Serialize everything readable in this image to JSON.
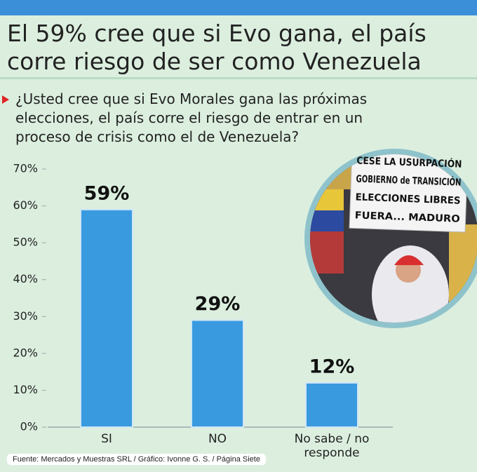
{
  "chart_data": {
    "type": "bar",
    "title": "El 59% cree que si Evo gana, el país corre riesgo de ser como Venezuela",
    "subtitle": "¿Usted cree que si Evo Morales gana las próximas elecciones, el país corre el riesgo de entrar en un proceso de crisis como el de Venezuela?",
    "categories": [
      "SI",
      "NO",
      "No sabe / no responde"
    ],
    "values": [
      59,
      29,
      12
    ],
    "value_labels": [
      "59%",
      "29%",
      "12%"
    ],
    "color": "#3a9ae0",
    "ylim": [
      0,
      70
    ],
    "yticks": [
      {
        "value": 0,
        "label": "0%"
      },
      {
        "value": 10,
        "label": "10%"
      },
      {
        "value": 20,
        "label": "20%"
      },
      {
        "value": 30,
        "label": "30%"
      },
      {
        "value": 40,
        "label": "40%"
      },
      {
        "value": 50,
        "label": "50%"
      },
      {
        "value": 60,
        "label": "60%"
      },
      {
        "value": 70,
        "label": "70%"
      }
    ],
    "grid": false,
    "photo_sign": [
      "CESE LA USURPACIÓN",
      "GOBIERNO de TRANSICIÓN",
      "ELECCIONES LIBRES",
      "FUERA... MADURO"
    ],
    "source": "Fuente: Mercados y Muestras SRL / Gráfico: Ivonne G. S. / Página Siete"
  }
}
